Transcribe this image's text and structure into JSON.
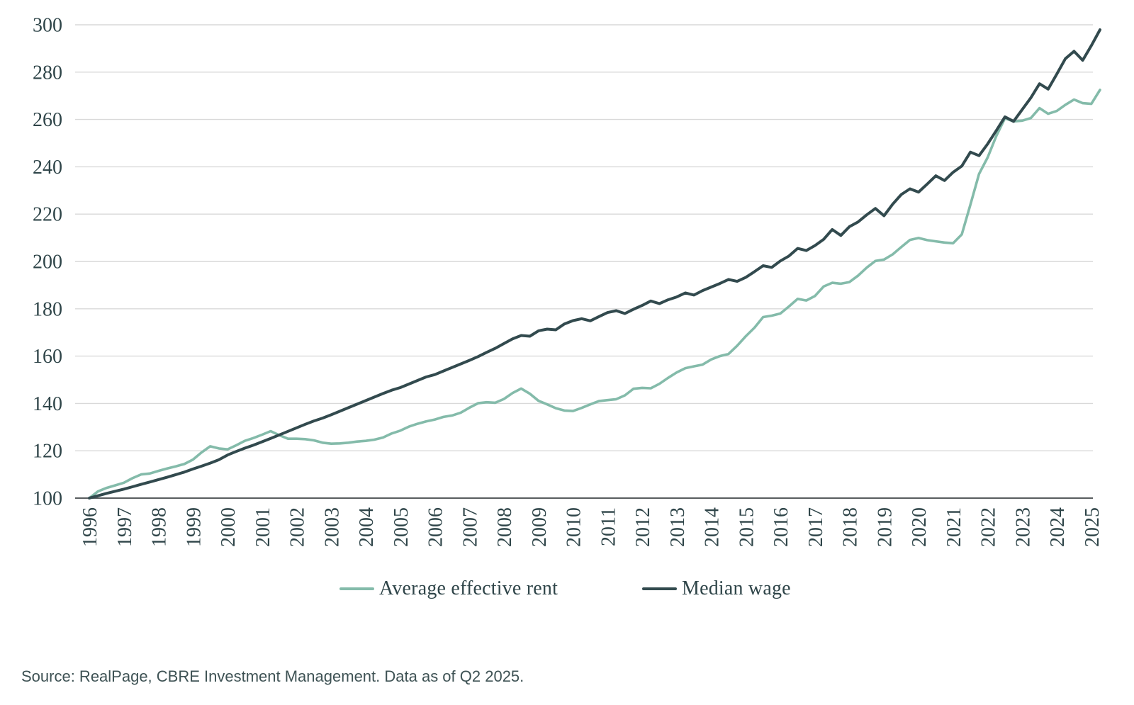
{
  "chart_data": {
    "type": "line",
    "title": "",
    "xlabel": "",
    "ylabel": "",
    "x_unit": "quarterly",
    "x_start": "1996 Q1",
    "x_end": "2025 Q2",
    "ylim": [
      100,
      300
    ],
    "y_ticks": [
      100,
      120,
      140,
      160,
      180,
      200,
      220,
      240,
      260,
      280,
      300
    ],
    "x_tick_labels": [
      "1996",
      "1997",
      "1998",
      "1999",
      "2000",
      "2001",
      "2002",
      "2003",
      "2004",
      "2005",
      "2006",
      "2007",
      "2008",
      "2009",
      "2010",
      "2011",
      "2012",
      "2013",
      "2014",
      "2015",
      "2016",
      "2017",
      "2018",
      "2019",
      "2020",
      "2021",
      "2022",
      "2023",
      "2024",
      "2025"
    ],
    "grid": "horizontal-only",
    "legend_position": "bottom-center",
    "index_base": 100,
    "series": [
      {
        "name": "Average effective rent",
        "color": "#84bbaa",
        "values": [
          100.0,
          102.8,
          104.3,
          105.4,
          106.5,
          108.4,
          110.0,
          110.4,
          111.5,
          112.5,
          113.4,
          114.4,
          116.3,
          119.3,
          121.9,
          121.0,
          120.6,
          122.3,
          124.2,
          125.4,
          126.8,
          128.3,
          126.6,
          125.1,
          125.1,
          124.9,
          124.4,
          123.4,
          123.0,
          123.1,
          123.4,
          123.9,
          124.2,
          124.7,
          125.6,
          127.3,
          128.5,
          130.2,
          131.4,
          132.4,
          133.2,
          134.3,
          134.9,
          136.1,
          138.2,
          140.1,
          140.5,
          140.3,
          141.9,
          144.4,
          146.3,
          144.1,
          141.1,
          139.6,
          138.0,
          137.0,
          136.8,
          138.1,
          139.6,
          141.0,
          141.4,
          141.8,
          143.4,
          146.2,
          146.6,
          146.4,
          148.3,
          150.8,
          153.1,
          154.9,
          155.7,
          156.4,
          158.6,
          160.0,
          160.9,
          164.4,
          168.4,
          172.0,
          176.5,
          177.1,
          178.0,
          181.0,
          184.2,
          183.5,
          185.4,
          189.4,
          191.0,
          190.6,
          191.3,
          194.0,
          197.4,
          200.2,
          200.8,
          203.0,
          206.1,
          209.1,
          209.9,
          209.0,
          208.5,
          208.0,
          207.7,
          211.4,
          224.0,
          237.0,
          244.0,
          253.0,
          260.5,
          259.2,
          259.5,
          260.6,
          264.8,
          262.4,
          263.6,
          266.2,
          268.4,
          266.9,
          266.6,
          272.5
        ]
      },
      {
        "name": "Median wage",
        "color": "#324a4e",
        "values": [
          100.0,
          101.0,
          102.0,
          102.9,
          103.8,
          104.8,
          105.8,
          106.8,
          107.8,
          108.8,
          109.9,
          111.0,
          112.3,
          113.5,
          114.8,
          116.2,
          118.2,
          119.7,
          121.1,
          122.4,
          123.8,
          125.2,
          126.7,
          128.2,
          129.7,
          131.2,
          132.6,
          133.8,
          135.2,
          136.7,
          138.2,
          139.7,
          141.2,
          142.7,
          144.2,
          145.6,
          146.7,
          148.2,
          149.7,
          151.2,
          152.2,
          153.7,
          155.2,
          156.7,
          158.2,
          159.8,
          161.6,
          163.3,
          165.3,
          167.3,
          168.7,
          168.4,
          170.7,
          171.4,
          171.1,
          173.6,
          175.0,
          175.8,
          174.9,
          176.7,
          178.4,
          179.2,
          178.0,
          179.8,
          181.4,
          183.3,
          182.2,
          183.8,
          185.0,
          186.7,
          185.8,
          187.7,
          189.2,
          190.7,
          192.4,
          191.6,
          193.3,
          195.7,
          198.2,
          197.5,
          200.2,
          202.3,
          205.5,
          204.6,
          206.7,
          209.3,
          213.5,
          211.0,
          214.7,
          216.7,
          219.7,
          222.4,
          219.3,
          224.2,
          228.3,
          230.7,
          229.3,
          232.7,
          236.2,
          234.2,
          237.7,
          240.3,
          246.2,
          244.7,
          249.7,
          255.3,
          261.1,
          259.2,
          264.2,
          269.2,
          275.1,
          272.8,
          279.2,
          285.7,
          288.8,
          285.0,
          291.2,
          297.9
        ]
      }
    ]
  },
  "legend": {
    "items": [
      {
        "label": "Average effective rent",
        "color": "#84bbaa"
      },
      {
        "label": "Median wage",
        "color": "#324a4e"
      }
    ]
  },
  "footer": {
    "source_text": "Source: RealPage, CBRE Investment Management. Data as of Q2 2025."
  },
  "colors": {
    "rent_line": "#84bbaa",
    "wage_line": "#324a4e",
    "gridline": "#d9d9d9",
    "axis_line": "#595d5f",
    "tick_label": "#2f4549",
    "source_text": "#3e5254",
    "background": "#ffffff"
  }
}
